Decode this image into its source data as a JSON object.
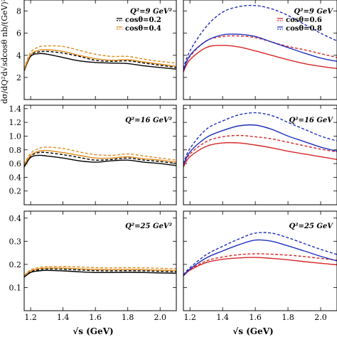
{
  "chart_data": [
    {
      "type": "line",
      "panel": "left-top",
      "x": [
        1.16,
        1.2,
        1.25,
        1.3,
        1.4,
        1.5,
        1.6,
        1.7,
        1.8,
        1.9,
        2.0,
        2.1
      ],
      "xlim": [
        1.16,
        2.1
      ],
      "ylim": [
        0,
        9
      ],
      "yticks": [
        2,
        4,
        6,
        8
      ],
      "yticklabels": [
        "2",
        "4",
        "6",
        "8"
      ],
      "ylabel": "dσ/dQ²d√sdcosθ  nb/(GeV)²",
      "annotation": "Q²=9 GeV²",
      "legend": [
        "cosθ=0.2",
        "cosθ=0.4"
      ],
      "series": [
        {
          "name": "cosθ=0.2",
          "style": "solid",
          "color": "#000000",
          "values": [
            2.6,
            3.9,
            4.15,
            4.1,
            3.8,
            3.5,
            3.35,
            3.3,
            3.25,
            3.05,
            2.9,
            2.75
          ]
        },
        {
          "name": "cosθ=0.2",
          "style": "dashed",
          "color": "#000000",
          "values": [
            2.7,
            4.0,
            4.3,
            4.35,
            4.2,
            3.9,
            3.55,
            3.45,
            3.5,
            3.3,
            3.1,
            2.9
          ]
        },
        {
          "name": "cosθ=0.4",
          "style": "solid",
          "color": "#e08a1c",
          "values": [
            2.7,
            4.05,
            4.45,
            4.5,
            4.35,
            4.0,
            3.7,
            3.55,
            3.6,
            3.4,
            3.2,
            3.0
          ]
        },
        {
          "name": "cosθ=0.4",
          "style": "dashed",
          "color": "#e08a1c",
          "values": [
            2.8,
            4.25,
            4.75,
            4.85,
            4.8,
            4.45,
            4.1,
            3.9,
            3.9,
            3.65,
            3.45,
            3.3
          ]
        }
      ]
    },
    {
      "type": "line",
      "panel": "right-top",
      "x": [
        1.16,
        1.2,
        1.3,
        1.4,
        1.5,
        1.6,
        1.7,
        1.8,
        1.9,
        2.0,
        2.1
      ],
      "xlim": [
        1.16,
        2.1
      ],
      "ylim": [
        0,
        9
      ],
      "annotation": "Q²=9 GeV",
      "legend": [
        "cosθ=0.6",
        "cosθ=0.8"
      ],
      "series": [
        {
          "name": "cosθ=0.6",
          "style": "solid",
          "color": "#d62728",
          "values": [
            2.5,
            3.6,
            4.7,
            4.9,
            4.75,
            4.4,
            4.0,
            3.6,
            3.25,
            3.0,
            2.8
          ]
        },
        {
          "name": "cosθ=0.6",
          "style": "dashed",
          "color": "#d62728",
          "values": [
            2.6,
            3.9,
            5.3,
            5.7,
            5.75,
            5.6,
            5.2,
            4.8,
            4.5,
            4.15,
            3.8
          ]
        },
        {
          "name": "cosθ=0.8",
          "style": "solid",
          "color": "#1f2fbf",
          "values": [
            2.6,
            4.0,
            5.3,
            5.85,
            5.9,
            5.7,
            5.2,
            4.7,
            4.2,
            3.75,
            3.45
          ]
        },
        {
          "name": "cosθ=0.8",
          "style": "dashed",
          "color": "#1f2fbf",
          "values": [
            2.8,
            4.4,
            6.6,
            7.9,
            8.4,
            8.5,
            8.2,
            7.6,
            6.8,
            6.0,
            5.3
          ]
        }
      ]
    },
    {
      "type": "line",
      "panel": "left-middle",
      "x": [
        1.16,
        1.2,
        1.25,
        1.3,
        1.4,
        1.5,
        1.6,
        1.7,
        1.8,
        1.9,
        2.0,
        2.1
      ],
      "xlim": [
        1.16,
        2.1
      ],
      "ylim": [
        0,
        1.45
      ],
      "yticks": [
        0.2,
        0.4,
        0.6,
        0.8,
        1.0,
        1.2,
        1.4
      ],
      "yticklabels": [
        "0.2",
        "0.4",
        "0.6",
        "0.8",
        "1.0",
        "1.2",
        "1.4"
      ],
      "annotation": "Q²=16 GeV²",
      "series": [
        {
          "name": "cosθ=0.2",
          "style": "solid",
          "color": "#000000",
          "values": [
            0.55,
            0.69,
            0.72,
            0.71,
            0.68,
            0.64,
            0.62,
            0.64,
            0.65,
            0.62,
            0.6,
            0.57
          ]
        },
        {
          "name": "cosθ=0.2",
          "style": "dashed",
          "color": "#000000",
          "values": [
            0.57,
            0.71,
            0.76,
            0.76,
            0.73,
            0.69,
            0.65,
            0.66,
            0.68,
            0.65,
            0.63,
            0.6
          ]
        },
        {
          "name": "cosθ=0.4",
          "style": "solid",
          "color": "#e08a1c",
          "values": [
            0.58,
            0.72,
            0.78,
            0.79,
            0.76,
            0.72,
            0.68,
            0.68,
            0.7,
            0.67,
            0.65,
            0.62
          ]
        },
        {
          "name": "cosθ=0.4",
          "style": "dashed",
          "color": "#e08a1c",
          "values": [
            0.59,
            0.75,
            0.82,
            0.84,
            0.82,
            0.77,
            0.73,
            0.72,
            0.74,
            0.71,
            0.68,
            0.65
          ]
        }
      ]
    },
    {
      "type": "line",
      "panel": "right-middle",
      "x": [
        1.16,
        1.2,
        1.3,
        1.4,
        1.5,
        1.6,
        1.7,
        1.8,
        1.9,
        2.0,
        2.1
      ],
      "xlim": [
        1.16,
        2.1
      ],
      "ylim": [
        0,
        1.45
      ],
      "annotation": "Q²=16 GeV",
      "series": [
        {
          "name": "cosθ=0.6",
          "style": "solid",
          "color": "#d62728",
          "values": [
            0.55,
            0.7,
            0.85,
            0.9,
            0.9,
            0.87,
            0.83,
            0.78,
            0.74,
            0.7,
            0.66
          ]
        },
        {
          "name": "cosθ=0.6",
          "style": "dashed",
          "color": "#d62728",
          "values": [
            0.57,
            0.74,
            0.92,
            0.99,
            1.01,
            0.99,
            0.96,
            0.91,
            0.86,
            0.81,
            0.77
          ]
        },
        {
          "name": "cosθ=0.8",
          "style": "solid",
          "color": "#1f2fbf",
          "values": [
            0.58,
            0.77,
            0.98,
            1.08,
            1.15,
            1.16,
            1.1,
            1.0,
            0.92,
            0.84,
            0.78
          ]
        },
        {
          "name": "cosθ=0.8",
          "style": "dashed",
          "color": "#1f2fbf",
          "values": [
            0.6,
            0.82,
            1.1,
            1.22,
            1.31,
            1.34,
            1.3,
            1.2,
            1.1,
            1.0,
            0.93
          ]
        }
      ]
    },
    {
      "type": "line",
      "panel": "left-bottom",
      "x": [
        1.16,
        1.2,
        1.25,
        1.3,
        1.4,
        1.5,
        1.6,
        1.7,
        1.8,
        1.9,
        2.0,
        2.1
      ],
      "xlim": [
        1.16,
        2.1
      ],
      "ylim": [
        0,
        0.43
      ],
      "yticks": [
        0.1,
        0.2,
        0.3,
        0.4
      ],
      "yticklabels": [
        "0.1",
        "0.2",
        "0.3",
        "0.4"
      ],
      "xticks": [
        1.2,
        1.4,
        1.6,
        1.8,
        2.0
      ],
      "xticklabels": [
        "1.2",
        "1.4",
        "1.6",
        "1.8",
        "2.0"
      ],
      "xlabel": "√s (GeV)",
      "annotation": "Q²=25 GeV²",
      "series": [
        {
          "name": "cosθ=0.2",
          "style": "solid",
          "color": "#000000",
          "values": [
            0.145,
            0.165,
            0.172,
            0.174,
            0.172,
            0.168,
            0.165,
            0.165,
            0.166,
            0.165,
            0.163,
            0.162
          ]
        },
        {
          "name": "cosθ=0.2",
          "style": "dashed",
          "color": "#000000",
          "values": [
            0.148,
            0.169,
            0.177,
            0.18,
            0.179,
            0.176,
            0.173,
            0.172,
            0.173,
            0.172,
            0.17,
            0.168
          ]
        },
        {
          "name": "cosθ=0.4",
          "style": "solid",
          "color": "#e08a1c",
          "values": [
            0.15,
            0.172,
            0.181,
            0.184,
            0.184,
            0.181,
            0.178,
            0.177,
            0.178,
            0.177,
            0.175,
            0.173
          ]
        },
        {
          "name": "cosθ=0.4",
          "style": "dashed",
          "color": "#e08a1c",
          "values": [
            0.152,
            0.176,
            0.186,
            0.19,
            0.191,
            0.189,
            0.186,
            0.185,
            0.186,
            0.185,
            0.183,
            0.181
          ]
        }
      ]
    },
    {
      "type": "line",
      "panel": "right-bottom",
      "x": [
        1.16,
        1.2,
        1.3,
        1.4,
        1.5,
        1.6,
        1.7,
        1.8,
        1.9,
        2.0,
        2.1
      ],
      "xlim": [
        1.16,
        2.1
      ],
      "ylim": [
        0,
        0.43
      ],
      "xticks": [
        1.2,
        1.4,
        1.6,
        1.8,
        2.0
      ],
      "xticklabels": [
        "1.2",
        "1.4",
        "1.6",
        "1.8",
        "2.0"
      ],
      "xlabel": "√s (GeV)",
      "annotation": "Q²=25 GeV",
      "series": [
        {
          "name": "cosθ=0.6",
          "style": "solid",
          "color": "#d62728",
          "values": [
            0.15,
            0.175,
            0.208,
            0.222,
            0.228,
            0.23,
            0.226,
            0.22,
            0.212,
            0.205,
            0.198
          ]
        },
        {
          "name": "cosθ=0.6",
          "style": "dashed",
          "color": "#d62728",
          "values": [
            0.152,
            0.178,
            0.215,
            0.232,
            0.242,
            0.246,
            0.244,
            0.24,
            0.234,
            0.226,
            0.218
          ]
        },
        {
          "name": "cosθ=0.8",
          "style": "solid",
          "color": "#1f2fbf",
          "values": [
            0.152,
            0.18,
            0.228,
            0.258,
            0.285,
            0.305,
            0.3,
            0.28,
            0.258,
            0.235,
            0.215
          ]
        },
        {
          "name": "cosθ=0.8",
          "style": "dashed",
          "color": "#1f2fbf",
          "values": [
            0.155,
            0.186,
            0.242,
            0.278,
            0.31,
            0.335,
            0.335,
            0.315,
            0.29,
            0.265,
            0.243
          ]
        }
      ]
    }
  ]
}
